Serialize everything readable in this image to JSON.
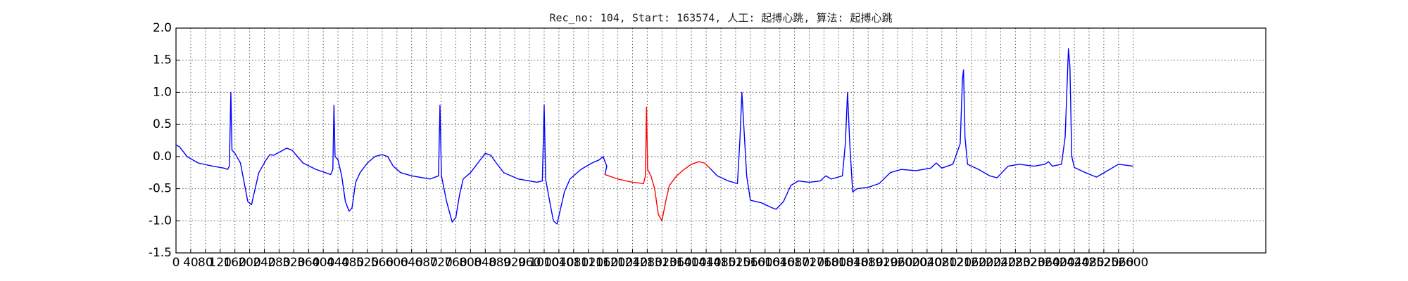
{
  "chart_data": {
    "type": "line",
    "title": "Rec_no: 104, Start: 163574, 人工: 起搏心跳, 算法: 起搏心跳",
    "xlim": [
      0,
      2960
    ],
    "ylim": [
      -1.5,
      2.0
    ],
    "xticks": [
      0,
      40,
      80,
      120,
      160,
      200,
      240,
      280,
      320,
      360,
      400,
      440,
      480,
      520,
      560,
      600,
      640,
      680,
      720,
      760,
      800,
      840,
      880,
      920,
      960,
      1000,
      1040,
      1080,
      1120,
      1160,
      1200,
      1240,
      1280,
      1320,
      1360,
      1400,
      1440,
      1480,
      1520,
      1560,
      1600,
      1640,
      1680,
      1720,
      1760,
      1800,
      1840,
      1880,
      1920,
      1960,
      2000,
      2040,
      2080,
      2120,
      2160,
      2200,
      2240,
      2280,
      2320,
      2360,
      2400,
      2440,
      2480,
      2520,
      2560,
      2600
    ],
    "yticks": [
      -1.5,
      {
        "value": -1.0,
        "label": "-1.0"
      },
      -0.5,
      {
        "value": 0.0,
        "label": "0.0"
      },
      0.5,
      {
        "value": 1.0,
        "label": "1.0"
      },
      1.5,
      {
        "value": 2.0,
        "label": "2.0"
      }
    ],
    "grid": true,
    "series": [
      {
        "color": "#0000ff",
        "x": [
          0,
          10,
          30,
          60,
          100,
          130,
          140,
          145,
          149,
          152,
          160,
          175,
          185,
          195,
          205,
          215,
          225,
          245,
          255,
          265,
          285,
          300,
          315,
          330,
          345,
          380,
          420,
          426,
          429,
          432,
          440,
          450,
          460,
          470,
          478,
          488,
          500,
          520,
          540,
          560,
          575,
          590,
          610,
          640,
          690,
          713,
          717,
          721,
          735,
          750,
          760,
          770,
          780,
          800,
          820,
          840,
          855,
          870,
          890,
          930,
          980,
          995,
          1000,
          1004,
          1015,
          1025,
          1035,
          1045,
          1055,
          1070,
          1100,
          1130,
          1150,
          1160,
          1170,
          1165
        ],
        "values": [
          0.18,
          0.15,
          0.0,
          -0.1,
          -0.15,
          -0.18,
          -0.2,
          -0.15,
          1.0,
          0.1,
          0.05,
          -0.1,
          -0.4,
          -0.7,
          -0.75,
          -0.5,
          -0.25,
          -0.05,
          0.03,
          0.02,
          0.08,
          0.13,
          0.1,
          0.0,
          -0.1,
          -0.2,
          -0.28,
          -0.2,
          0.8,
          0.0,
          -0.05,
          -0.3,
          -0.7,
          -0.85,
          -0.8,
          -0.4,
          -0.25,
          -0.1,
          0.0,
          0.03,
          0.0,
          -0.15,
          -0.25,
          -0.3,
          -0.35,
          -0.3,
          0.8,
          -0.3,
          -0.7,
          -1.02,
          -0.95,
          -0.6,
          -0.35,
          -0.25,
          -0.1,
          0.05,
          0.02,
          -0.1,
          -0.25,
          -0.35,
          -0.4,
          -0.38,
          0.8,
          -0.35,
          -0.7,
          -1.0,
          -1.05,
          -0.8,
          -0.55,
          -0.35,
          -0.2,
          -0.1,
          -0.05,
          0.0,
          -0.15,
          -0.28
        ]
      },
      {
        "color": "#ff0000",
        "x": [
          1165,
          1200,
          1240,
          1270,
          1275,
          1278,
          1281,
          1290,
          1300,
          1310,
          1320,
          1330,
          1340,
          1360,
          1380,
          1400,
          1420,
          1435,
          1450
        ],
        "values": [
          -0.28,
          -0.35,
          -0.4,
          -0.42,
          -0.3,
          0.77,
          -0.2,
          -0.3,
          -0.5,
          -0.9,
          -1.0,
          -0.7,
          -0.45,
          -0.3,
          -0.2,
          -0.12,
          -0.08,
          -0.1,
          -0.18
        ]
      },
      {
        "color": "#0000ff",
        "x": [
          1450,
          1470,
          1500,
          1525,
          1532,
          1537,
          1542,
          1550,
          1560,
          1590,
          1620,
          1630,
          1650,
          1670,
          1690,
          1720,
          1750,
          1765,
          1780,
          1810,
          1818,
          1824,
          1830,
          1838,
          1850,
          1880,
          1910,
          1940,
          1970,
          2010,
          2050,
          2065,
          2080,
          2110,
          2130,
          2136,
          2139,
          2143,
          2150,
          2180,
          2210,
          2230,
          2260,
          2290,
          2330,
          2360,
          2370,
          2380,
          2405,
          2415,
          2424,
          2428,
          2433,
          2440,
          2470,
          2500,
          2530,
          2560,
          2600
        ],
        "values": [
          -0.18,
          -0.3,
          -0.38,
          -0.42,
          0.3,
          1.0,
          0.5,
          -0.3,
          -0.68,
          -0.72,
          -0.8,
          -0.82,
          -0.7,
          -0.45,
          -0.38,
          -0.4,
          -0.38,
          -0.3,
          -0.35,
          -0.3,
          0.2,
          1.0,
          0.2,
          -0.55,
          -0.5,
          -0.48,
          -0.42,
          -0.25,
          -0.2,
          -0.22,
          -0.18,
          -0.1,
          -0.18,
          -0.12,
          0.2,
          1.2,
          1.35,
          0.3,
          -0.12,
          -0.2,
          -0.3,
          -0.33,
          -0.15,
          -0.12,
          -0.15,
          -0.12,
          -0.08,
          -0.15,
          -0.12,
          0.3,
          1.68,
          1.4,
          0.0,
          -0.17,
          -0.25,
          -0.32,
          -0.22,
          -0.12,
          -0.15
        ]
      }
    ]
  }
}
